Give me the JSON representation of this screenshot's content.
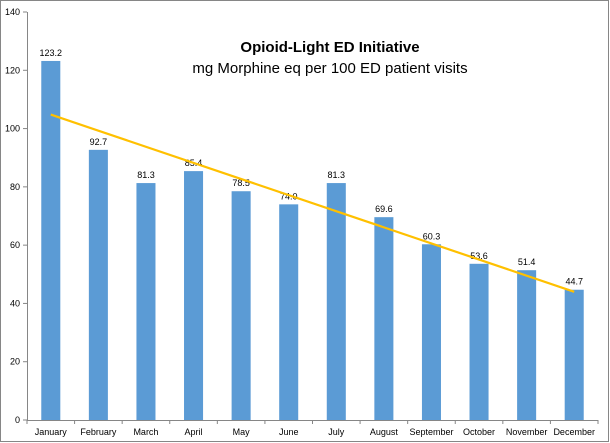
{
  "chart_data": {
    "type": "bar",
    "title": "Opioid-Light ED Initiative",
    "subtitle": "mg Morphine eq per 100 ED patient visits",
    "xlabel": "",
    "ylabel": "",
    "categories": [
      "January",
      "February",
      "March",
      "April",
      "May",
      "June",
      "July",
      "August",
      "September",
      "October",
      "November",
      "December"
    ],
    "series": [
      {
        "values": [
          123.2,
          92.7,
          81.3,
          85.4,
          78.5,
          74.0,
          81.3,
          69.6,
          60.3,
          53.6,
          51.4,
          44.7
        ],
        "color": "#5b9bd5"
      }
    ],
    "data_labels": [
      "123.2",
      "92.7",
      "81.3",
      "85.4",
      "78.5",
      "74.0",
      "81.3",
      "69.6",
      "60.3",
      "53.6",
      "51.4",
      "44.7"
    ],
    "trendline": {
      "type": "linear",
      "color": "#ffc000",
      "start": 104.8,
      "end": 44.0
    },
    "ylim": [
      0,
      140
    ],
    "yticks": [
      0,
      20,
      40,
      60,
      80,
      100,
      120,
      140
    ],
    "grid": false,
    "legend": "none"
  }
}
